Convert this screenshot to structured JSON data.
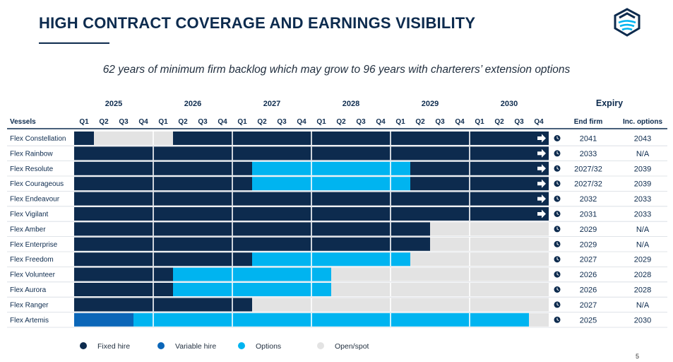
{
  "header": {
    "title": "HIGH CONTRACT COVERAGE AND EARNINGS VISIBILITY",
    "subtitle": "62 years of minimum firm backlog which may grow to 96 years with charterers’ extension options",
    "page_number": "5",
    "logo_icon": "flex-lng-logo-icon"
  },
  "colors": {
    "fixed": "#0d2b4e",
    "variable": "#0b66b8",
    "options": "#00b4f0",
    "open": "#e3e3e3"
  },
  "chart_data": {
    "type": "gantt",
    "vessels_header": "Vessels",
    "expiry_header": "Expiry",
    "end_firm_header": "End firm",
    "inc_options_header": "Inc. options",
    "years": [
      "2025",
      "2026",
      "2027",
      "2028",
      "2029",
      "2030"
    ],
    "quarters": [
      "Q1",
      "Q2",
      "Q3",
      "Q4"
    ],
    "legend": [
      {
        "key": "fixed",
        "label": "Fixed hire"
      },
      {
        "key": "variable",
        "label": "Variable hire"
      },
      {
        "key": "options",
        "label": "Options"
      },
      {
        "key": "open",
        "label": "Open/spot"
      }
    ],
    "rows": [
      {
        "vessel": "Flex Constellation",
        "arrow": true,
        "end_firm": "2041",
        "inc_options": "2043",
        "segments": [
          {
            "from": 0,
            "to": 1,
            "type": "fixed"
          },
          {
            "from": 1,
            "to": 5,
            "type": "open"
          },
          {
            "from": 5,
            "to": 24,
            "type": "fixed"
          }
        ]
      },
      {
        "vessel": "Flex Rainbow",
        "arrow": true,
        "end_firm": "2033",
        "inc_options": "N/A",
        "segments": [
          {
            "from": 0,
            "to": 24,
            "type": "fixed"
          }
        ]
      },
      {
        "vessel": "Flex Resolute",
        "arrow": true,
        "end_firm": "2027/32",
        "inc_options": "2039",
        "segments": [
          {
            "from": 0,
            "to": 9,
            "type": "fixed"
          },
          {
            "from": 9,
            "to": 17,
            "type": "options"
          },
          {
            "from": 17,
            "to": 24,
            "type": "fixed"
          }
        ]
      },
      {
        "vessel": "Flex Courageous",
        "arrow": true,
        "end_firm": "2027/32",
        "inc_options": "2039",
        "segments": [
          {
            "from": 0,
            "to": 9,
            "type": "fixed"
          },
          {
            "from": 9,
            "to": 17,
            "type": "options"
          },
          {
            "from": 17,
            "to": 24,
            "type": "fixed"
          }
        ]
      },
      {
        "vessel": "Flex Endeavour",
        "arrow": true,
        "end_firm": "2032",
        "inc_options": "2033",
        "segments": [
          {
            "from": 0,
            "to": 24,
            "type": "fixed"
          }
        ]
      },
      {
        "vessel": "Flex Vigilant",
        "arrow": true,
        "end_firm": "2031",
        "inc_options": "2033",
        "segments": [
          {
            "from": 0,
            "to": 24,
            "type": "fixed"
          }
        ]
      },
      {
        "vessel": "Flex Amber",
        "arrow": false,
        "end_firm": "2029",
        "inc_options": "N/A",
        "segments": [
          {
            "from": 0,
            "to": 18,
            "type": "fixed"
          },
          {
            "from": 18,
            "to": 24,
            "type": "open"
          }
        ]
      },
      {
        "vessel": "Flex Enterprise",
        "arrow": false,
        "end_firm": "2029",
        "inc_options": "N/A",
        "segments": [
          {
            "from": 0,
            "to": 18,
            "type": "fixed"
          },
          {
            "from": 18,
            "to": 24,
            "type": "open"
          }
        ]
      },
      {
        "vessel": "Flex Freedom",
        "arrow": false,
        "end_firm": "2027",
        "inc_options": "2029",
        "segments": [
          {
            "from": 0,
            "to": 9,
            "type": "fixed"
          },
          {
            "from": 9,
            "to": 17,
            "type": "options"
          },
          {
            "from": 17,
            "to": 24,
            "type": "open"
          }
        ]
      },
      {
        "vessel": "Flex Volunteer",
        "arrow": false,
        "end_firm": "2026",
        "inc_options": "2028",
        "segments": [
          {
            "from": 0,
            "to": 5,
            "type": "fixed"
          },
          {
            "from": 5,
            "to": 13,
            "type": "options"
          },
          {
            "from": 13,
            "to": 24,
            "type": "open"
          }
        ]
      },
      {
        "vessel": "Flex Aurora",
        "arrow": false,
        "end_firm": "2026",
        "inc_options": "2028",
        "segments": [
          {
            "from": 0,
            "to": 5,
            "type": "fixed"
          },
          {
            "from": 5,
            "to": 13,
            "type": "options"
          },
          {
            "from": 13,
            "to": 24,
            "type": "open"
          }
        ]
      },
      {
        "vessel": "Flex Ranger",
        "arrow": false,
        "end_firm": "2027",
        "inc_options": "N/A",
        "segments": [
          {
            "from": 0,
            "to": 9,
            "type": "fixed"
          },
          {
            "from": 9,
            "to": 24,
            "type": "open"
          }
        ]
      },
      {
        "vessel": "Flex Artemis",
        "arrow": false,
        "end_firm": "2025",
        "inc_options": "2030",
        "segments": [
          {
            "from": 0,
            "to": 3,
            "type": "variable"
          },
          {
            "from": 3,
            "to": 23,
            "type": "options"
          },
          {
            "from": 23,
            "to": 24,
            "type": "open"
          }
        ]
      }
    ]
  }
}
